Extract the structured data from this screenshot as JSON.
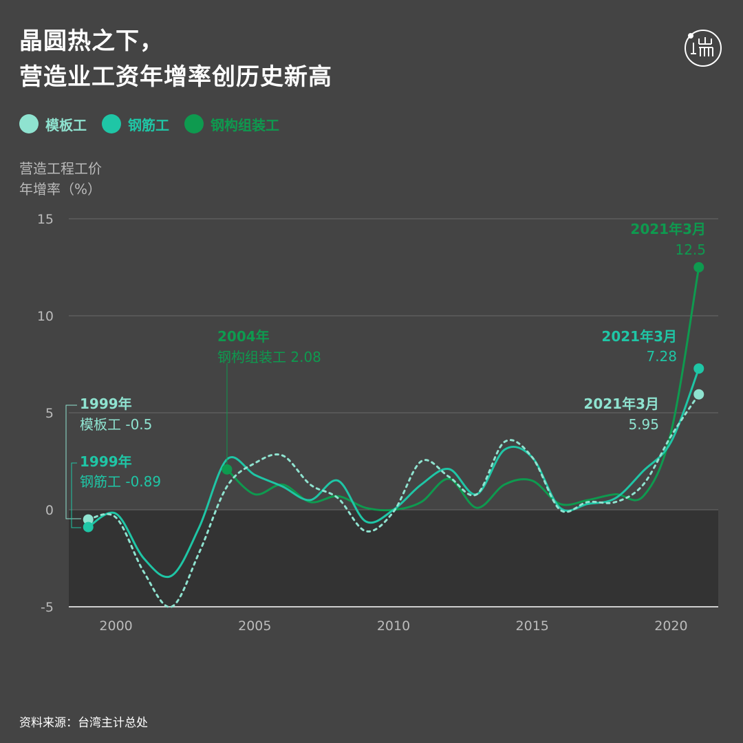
{
  "title_line1": "晶圆热之下，",
  "title_line2": "营造业工资年增率创历史新高",
  "logo_text": "端",
  "colors": {
    "background": "#444444",
    "negative_band": "#333333",
    "template": "#8fe3d0",
    "rebar": "#1fc6a6",
    "steel": "#0e9a4f",
    "grid": "#6a6a6a",
    "tick": "#bbbbbb"
  },
  "legend": [
    {
      "label": "模板工",
      "color": "#8fe3d0"
    },
    {
      "label": "钢筋工",
      "color": "#1fc6a6"
    },
    {
      "label": "钢构组装工",
      "color": "#0e9a4f"
    }
  ],
  "source": "资料来源：台湾主计总处",
  "chart_data": {
    "type": "line",
    "ylabel_line1": "营造工程工价",
    "ylabel_line2": "年增率（%）",
    "ylim": [
      -5,
      15
    ],
    "xlim": [
      1998.3,
      2021.7
    ],
    "yticks": [
      15,
      10,
      5,
      0,
      -5
    ],
    "xticks": [
      2000,
      2005,
      2010,
      2015,
      2020
    ],
    "series": [
      {
        "name": "模板工",
        "color": "#8fe3d0",
        "style": "dotted",
        "x": [
          1999,
          2000,
          2001,
          2002,
          2003,
          2004,
          2005,
          2006,
          2007,
          2008,
          2009,
          2010,
          2011,
          2012,
          2013,
          2014,
          2015,
          2016,
          2017,
          2018,
          2019,
          2020,
          2021
        ],
        "values": [
          -0.5,
          -0.4,
          -3.2,
          -5.0,
          -2.2,
          1.2,
          2.4,
          2.8,
          1.3,
          0.6,
          -1.1,
          -0.1,
          2.5,
          1.7,
          0.8,
          3.5,
          2.7,
          0.0,
          0.4,
          0.4,
          1.3,
          3.8,
          5.95
        ]
      },
      {
        "name": "钢筋工",
        "color": "#1fc6a6",
        "style": "solid",
        "x": [
          1999,
          2000,
          2001,
          2002,
          2003,
          2004,
          2005,
          2006,
          2007,
          2008,
          2009,
          2010,
          2011,
          2012,
          2013,
          2014,
          2015,
          2016,
          2017,
          2018,
          2019,
          2020,
          2021
        ],
        "values": [
          -0.89,
          -0.2,
          -2.5,
          -3.4,
          -0.9,
          2.6,
          1.8,
          1.2,
          0.5,
          1.5,
          -0.6,
          0.0,
          1.3,
          2.1,
          0.8,
          3.1,
          2.7,
          0.1,
          0.3,
          0.6,
          2.0,
          3.5,
          7.28
        ]
      },
      {
        "name": "钢构组装工",
        "color": "#0e9a4f",
        "style": "solid",
        "x": [
          2004,
          2005,
          2006,
          2007,
          2008,
          2009,
          2010,
          2011,
          2012,
          2013,
          2014,
          2015,
          2016,
          2017,
          2018,
          2019,
          2020,
          2021
        ],
        "values": [
          2.08,
          0.8,
          1.3,
          0.4,
          0.7,
          0.1,
          0.0,
          0.4,
          1.6,
          0.1,
          1.3,
          1.5,
          0.3,
          0.5,
          0.8,
          0.7,
          4.0,
          12.5
        ]
      }
    ],
    "annotations": [
      {
        "series": "钢构组装工",
        "x": 2021,
        "y": 12.5,
        "label": "2021年3月",
        "value": "12.5"
      },
      {
        "series": "钢筋工",
        "x": 2021,
        "y": 7.28,
        "label": "2021年3月",
        "value": "7.28"
      },
      {
        "series": "模板工",
        "x": 2021,
        "y": 5.95,
        "label": "2021年3月",
        "value": "5.95"
      },
      {
        "series": "钢构组装工",
        "x": 2004,
        "y": 2.08,
        "label": "2004年",
        "value": "钢构组装工 2.08"
      },
      {
        "series": "模板工",
        "x": 1999,
        "y": -0.5,
        "label": "1999年",
        "value": "模板工 -0.5"
      },
      {
        "series": "钢筋工",
        "x": 1999,
        "y": -0.89,
        "label": "1999年",
        "value": "钢筋工 -0.89"
      }
    ]
  }
}
